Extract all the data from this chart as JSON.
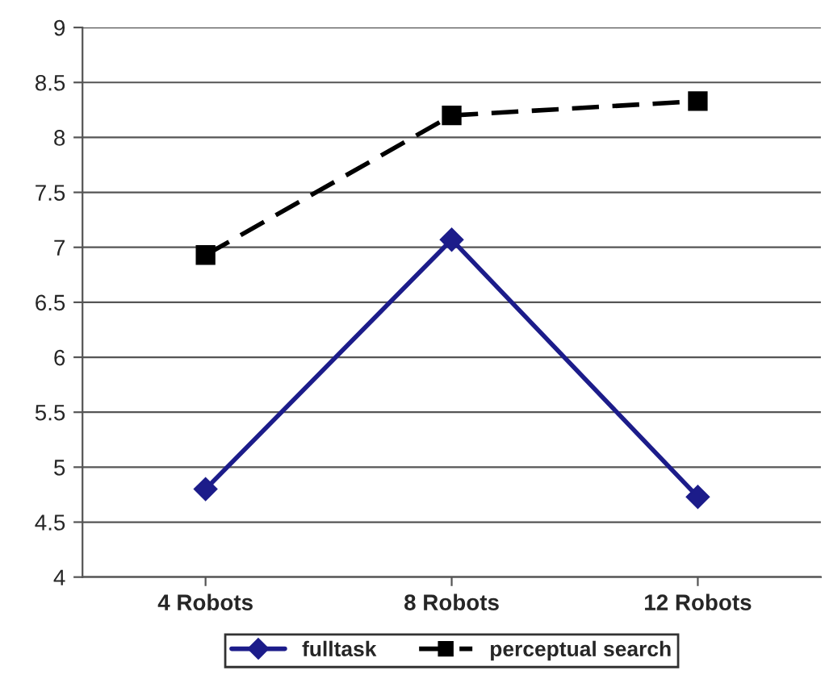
{
  "chart_data": {
    "type": "line",
    "categories": [
      "4 Robots",
      "8 Robots",
      "12 Robots"
    ],
    "series": [
      {
        "name": "fulltask",
        "color": "#1c1c8a",
        "values": [
          4.8,
          7.07,
          4.73
        ],
        "marker": "diamond",
        "line_style": "solid"
      },
      {
        "name": "perceptual search",
        "color": "#000000",
        "values": [
          6.93,
          8.2,
          8.33
        ],
        "marker": "square",
        "line_style": "dashed"
      }
    ],
    "ylim": [
      4,
      9
    ],
    "yticks": [
      4,
      {
        "value": 4.5,
        "label": "4.5"
      },
      5,
      {
        "value": 5.5,
        "label": "5.5"
      },
      6,
      {
        "value": 6.5,
        "label": "6.5"
      },
      7,
      {
        "value": 7.5,
        "label": "7.5"
      },
      8,
      {
        "value": 8.5,
        "label": "8.5"
      },
      9
    ],
    "grid": "y",
    "legend": "bottom"
  }
}
